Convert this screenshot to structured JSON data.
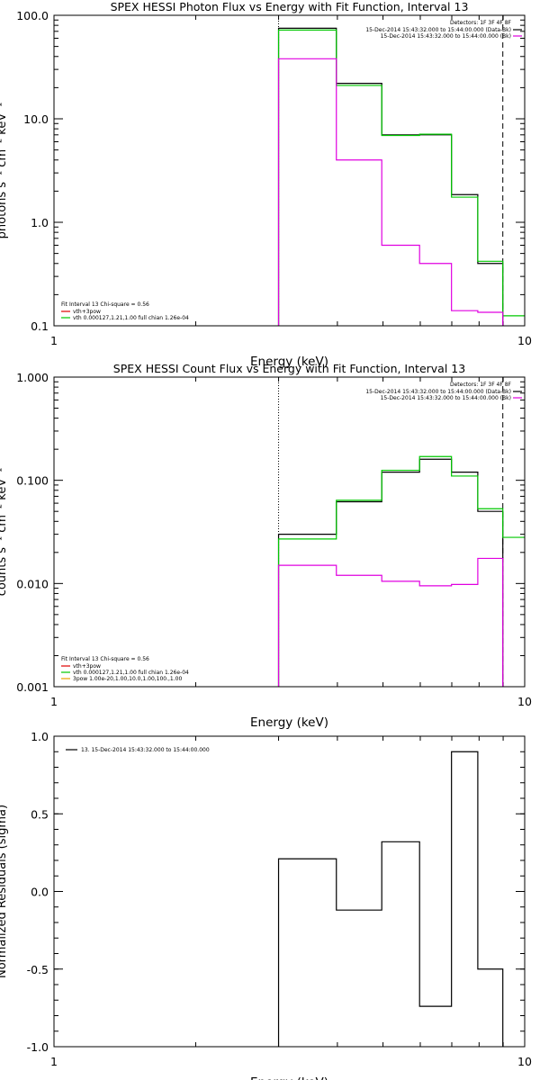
{
  "chart_data": [
    {
      "type": "line",
      "title": "SPEX HESSI Photon Flux vs Energy with Fit Function, Interval 13",
      "xlabel": "Energy (keV)",
      "ylabel": "photons s⁻¹ cm⁻² keV⁻¹",
      "xscale": "log",
      "yscale": "log",
      "xlim": [
        1,
        10
      ],
      "ylim": [
        0.1,
        100
      ],
      "x_ticks": [
        1,
        10
      ],
      "x_tick_labels": [
        "1",
        "10"
      ],
      "y_ticks": [
        0.1,
        1,
        10,
        100
      ],
      "y_tick_labels": [
        "0.1",
        "1.0",
        "10.0",
        "100.0"
      ],
      "grid": false,
      "vlines": [
        {
          "x": 3.0,
          "style": "dotted",
          "color": "#000000"
        },
        {
          "x": 8.985,
          "style": "dashed",
          "color": "#000000"
        }
      ],
      "series": [
        {
          "color": "#000000",
          "edges": [
            3.0,
            3.98,
            4.97,
            5.98,
            6.99,
            7.95,
            8.985
          ],
          "values": [
            75,
            22,
            7.0,
            7.0,
            1.85,
            0.4
          ]
        },
        {
          "color": "#00c800",
          "edges": [
            3.0,
            3.98,
            4.97,
            5.98,
            6.99,
            7.95,
            8.985,
            10.0
          ],
          "values": [
            72,
            21,
            6.9,
            7.1,
            1.75,
            0.42,
            0.125
          ]
        },
        {
          "color": "#e000e0",
          "edges": [
            3.0,
            3.98,
            4.97,
            5.98,
            6.99,
            7.95,
            8.985
          ],
          "values": [
            38,
            4.0,
            0.6,
            0.4,
            0.14,
            0.135
          ]
        }
      ],
      "top_legend": {
        "header": "Detectors: 1F 3F 4F 8F",
        "entries": [
          {
            "text": "15-Dec-2014 15:43:32.000 to 15:44:00.000 (Data-Bk)",
            "color": "#000000"
          },
          {
            "text": "15-Dec-2014 15:43:32.000 to 15:44:00.000 (Bk)",
            "color": "#e000e0"
          }
        ]
      },
      "bottom_legend": {
        "header": "Fit Interval 13   Chi-square = 0.56",
        "entries": [
          {
            "text": "vth+3pow",
            "color": "#e00000"
          },
          {
            "text": "vth 0.000127,1.21,1.00  full chian 1.26e-04",
            "color": "#00c800"
          }
        ]
      }
    },
    {
      "type": "line",
      "title": "SPEX HESSI Count Flux vs Energy with Fit Function, Interval 13",
      "xlabel": "Energy (keV)",
      "ylabel": "counts s⁻¹ cm⁻² keV⁻¹",
      "xscale": "log",
      "yscale": "log",
      "xlim": [
        1,
        10
      ],
      "ylim": [
        0.001,
        1
      ],
      "x_ticks": [
        1,
        10
      ],
      "x_tick_labels": [
        "1",
        "10"
      ],
      "y_ticks": [
        0.001,
        0.01,
        0.1,
        1
      ],
      "y_tick_labels": [
        "0.001",
        "0.010",
        "0.100",
        "1.000"
      ],
      "grid": false,
      "vlines": [
        {
          "x": 3.0,
          "style": "dotted",
          "color": "#000000"
        },
        {
          "x": 8.985,
          "style": "dashed",
          "color": "#000000"
        }
      ],
      "series": [
        {
          "color": "#000000",
          "edges": [
            3.0,
            3.98,
            4.97,
            5.98,
            6.99,
            7.95,
            8.985
          ],
          "values": [
            0.03,
            0.062,
            0.12,
            0.16,
            0.12,
            0.05
          ]
        },
        {
          "color": "#00c800",
          "edges": [
            3.0,
            3.98,
            4.97,
            5.98,
            6.99,
            7.95,
            8.985,
            10.0
          ],
          "values": [
            0.027,
            0.064,
            0.125,
            0.17,
            0.11,
            0.053,
            0.028
          ]
        },
        {
          "color": "#e000e0",
          "edges": [
            3.0,
            3.98,
            4.97,
            5.98,
            6.99,
            7.95,
            8.985
          ],
          "values": [
            0.015,
            0.012,
            0.0105,
            0.0095,
            0.0098,
            0.0175
          ]
        }
      ],
      "top_legend": {
        "header": "Detectors: 1F 3F 4F 8F",
        "entries": [
          {
            "text": "15-Dec-2014 15:43:32.000 to 15:44:00.000 (Data-Bk)",
            "color": "#000000"
          },
          {
            "text": "15-Dec-2014 15:43:32.000 to 15:44:00.000 (Bk)",
            "color": "#e000e0"
          }
        ]
      },
      "bottom_legend": {
        "header": "Fit Interval 13   Chi-square = 0.56",
        "entries": [
          {
            "text": "vth+3pow",
            "color": "#e00000"
          },
          {
            "text": "vth 0.000127,1.21,1.00  full chian 1.26e-04",
            "color": "#00c800"
          },
          {
            "text": "3pow 1.00e-20,1.00,10.0,1.00,100.,1.00",
            "color": "#e8a000"
          }
        ]
      }
    },
    {
      "type": "line",
      "title": "",
      "xlabel": "Energy (keV)",
      "ylabel": "Normalized Residuals (sigma)",
      "xscale": "log",
      "yscale": "linear",
      "xlim": [
        1,
        10
      ],
      "ylim": [
        -1.0,
        1.0
      ],
      "x_ticks": [
        1,
        10
      ],
      "x_tick_labels": [
        "1",
        "10"
      ],
      "y_ticks": [
        -1.0,
        -0.5,
        0.0,
        0.5,
        1.0
      ],
      "y_tick_labels": [
        "-1.0",
        "-0.5",
        "0.0",
        "0.5",
        "1.0"
      ],
      "grid": false,
      "vlines": [],
      "series": [
        {
          "color": "#000000",
          "edges": [
            3.0,
            3.98,
            4.97,
            5.98,
            6.99,
            7.95,
            8.985
          ],
          "values": [
            0.21,
            -0.12,
            0.32,
            -0.74,
            0.9,
            -0.5
          ]
        }
      ],
      "top_legend": {
        "header": "",
        "entries": [
          {
            "text": "13. 15-Dec-2014 15:43:32.000 to 15:44:00.000",
            "color": "#000000",
            "align": "left"
          }
        ]
      }
    }
  ]
}
